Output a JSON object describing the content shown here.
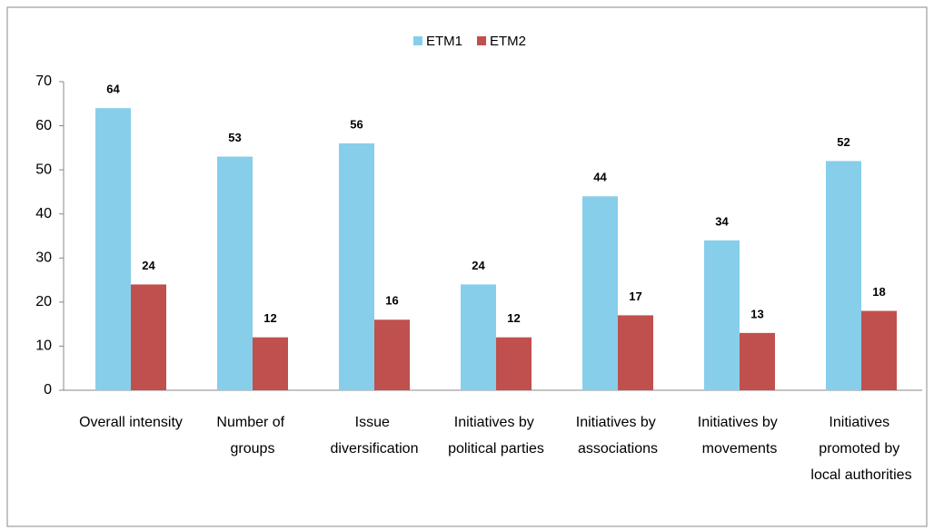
{
  "chart_data": {
    "type": "bar",
    "categories": [
      "Overall intensity",
      "Number of groups",
      "Issue diversification",
      "Initiatives by political parties",
      "Initiatives by associations",
      "Initiatives by movements",
      "Initiatives promoted by local authorities"
    ],
    "series": [
      {
        "name": "ETM1",
        "color": "#87ceeb",
        "values": [
          64,
          53,
          56,
          24,
          44,
          34,
          52
        ]
      },
      {
        "name": "ETM2",
        "color": "#c0504d",
        "values": [
          24,
          12,
          16,
          12,
          17,
          13,
          18
        ]
      }
    ],
    "ylim": [
      0,
      70
    ],
    "yticks": [
      0,
      10,
      20,
      30,
      40,
      50,
      60,
      70
    ],
    "grid": false,
    "legend": "top"
  }
}
